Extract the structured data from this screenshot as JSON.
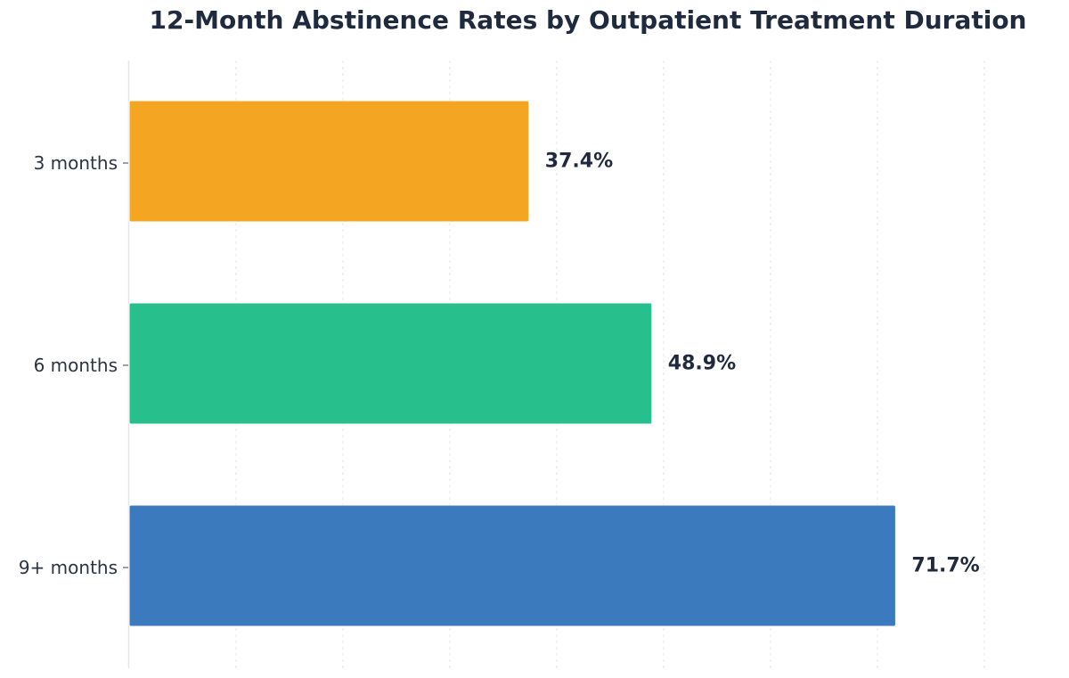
{
  "chart_data": {
    "type": "bar",
    "orientation": "horizontal",
    "title": "12-Month Abstinence Rates by Outpatient Treatment Duration",
    "xlabel": "",
    "ylabel": "",
    "categories": [
      "3 months",
      "6 months",
      "9+ months"
    ],
    "values": [
      37.4,
      48.9,
      71.7
    ],
    "value_labels": [
      "37.4%",
      "48.9%",
      "71.7%"
    ],
    "colors": [
      "#f4a623",
      "#27bf8c",
      "#3b7bbd"
    ],
    "xlim": [
      0,
      80
    ],
    "grid": true,
    "legend": "none"
  }
}
